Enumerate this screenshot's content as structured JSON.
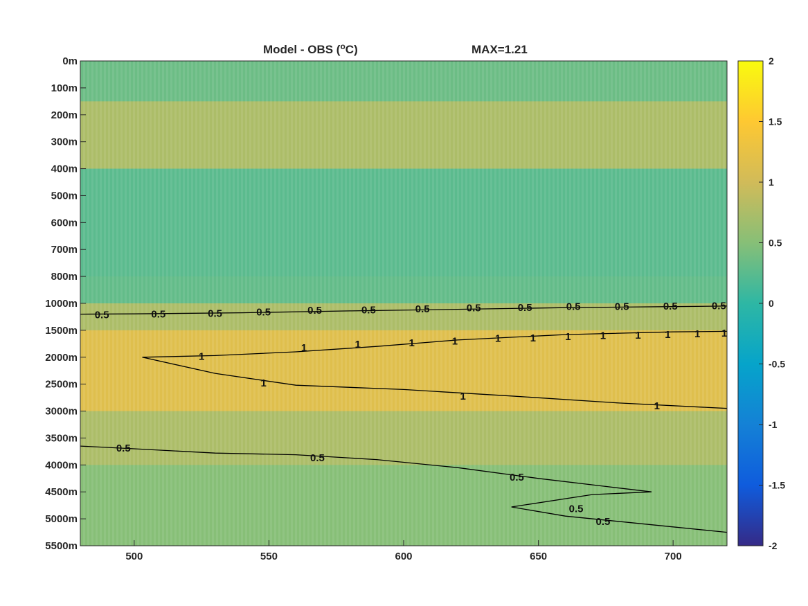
{
  "chart_data": {
    "type": "heatmap",
    "title_left": "Model - OBS (",
    "title_unit_sup": "o",
    "title_unit": "C)",
    "title_right": "MAX=1.21",
    "xlim": [
      480,
      720
    ],
    "x_ticks": [
      "500",
      "550",
      "600",
      "650",
      "700"
    ],
    "x_tick_values": [
      500,
      550,
      600,
      650,
      700
    ],
    "y_tick_labels": [
      "0m",
      "100m",
      "200m",
      "300m",
      "400m",
      "500m",
      "600m",
      "700m",
      "800m",
      "1000m",
      "1500m",
      "2000m",
      "2500m",
      "3000m",
      "3500m",
      "4000m",
      "4500m",
      "5000m",
      "5500m"
    ],
    "y_tick_depths": [
      0,
      100,
      200,
      300,
      400,
      500,
      600,
      700,
      800,
      1000,
      1500,
      2000,
      2500,
      3000,
      3500,
      4000,
      4500,
      5000,
      5500
    ],
    "colorbar": {
      "range": [
        -2,
        2
      ],
      "ticks": [
        "2",
        "1.5",
        "1",
        "0.5",
        "0",
        "-0.5",
        "-1",
        "-1.5",
        "-2"
      ],
      "tick_values": [
        2,
        1.5,
        1,
        0.5,
        0,
        -0.5,
        -1,
        -1.5,
        -2
      ],
      "colormap": "parula"
    },
    "field_bands": [
      {
        "depth_from": 0,
        "depth_to": 150,
        "value": 0.35
      },
      {
        "depth_from": 150,
        "depth_to": 400,
        "value": 0.75
      },
      {
        "depth_from": 400,
        "depth_to": 800,
        "value": 0.25
      },
      {
        "depth_from": 800,
        "depth_to": 1000,
        "value": 0.3
      },
      {
        "depth_from": 1000,
        "depth_to": 1500,
        "value": 0.75
      },
      {
        "depth_from": 1500,
        "depth_to": 3000,
        "value": 1.15
      },
      {
        "depth_from": 3000,
        "depth_to": 4000,
        "value": 0.75
      },
      {
        "depth_from": 4000,
        "depth_to": 5500,
        "value": 0.5
      }
    ],
    "contours": [
      {
        "level": 0.5,
        "points": [
          [
            480,
            1200
          ],
          [
            500,
            1195
          ],
          [
            540,
            1175
          ],
          [
            580,
            1140
          ],
          [
            620,
            1110
          ],
          [
            660,
            1080
          ],
          [
            700,
            1060
          ],
          [
            720,
            1050
          ]
        ]
      },
      {
        "level": 1,
        "points": [
          [
            720,
            1520
          ],
          [
            700,
            1530
          ],
          [
            660,
            1580
          ],
          [
            620,
            1680
          ],
          [
            590,
            1800
          ],
          [
            560,
            1900
          ],
          [
            530,
            1970
          ],
          [
            503,
            2000
          ],
          [
            530,
            2300
          ],
          [
            560,
            2520
          ],
          [
            600,
            2600
          ],
          [
            640,
            2720
          ],
          [
            680,
            2850
          ],
          [
            720,
            2950
          ]
        ]
      },
      {
        "level": 0.5,
        "points": [
          [
            480,
            3650
          ],
          [
            500,
            3700
          ],
          [
            530,
            3780
          ],
          [
            560,
            3810
          ],
          [
            590,
            3900
          ],
          [
            620,
            4050
          ],
          [
            650,
            4250
          ],
          [
            675,
            4400
          ],
          [
            692,
            4500
          ],
          [
            670,
            4550
          ],
          [
            640,
            4780
          ],
          [
            660,
            4950
          ],
          [
            700,
            5150
          ],
          [
            720,
            5250
          ]
        ]
      }
    ],
    "contour_labels": [
      {
        "text": "0.5",
        "x": 488,
        "depth": 1215
      },
      {
        "text": "0.5",
        "x": 509,
        "depth": 1200
      },
      {
        "text": "0.5",
        "x": 530,
        "depth": 1185
      },
      {
        "text": "0.5",
        "x": 548,
        "depth": 1160
      },
      {
        "text": "0.5",
        "x": 567,
        "depth": 1130
      },
      {
        "text": "0.5",
        "x": 587,
        "depth": 1120
      },
      {
        "text": "0.5",
        "x": 607,
        "depth": 1105
      },
      {
        "text": "0.5",
        "x": 626,
        "depth": 1085
      },
      {
        "text": "0.5",
        "x": 645,
        "depth": 1075
      },
      {
        "text": "0.5",
        "x": 663,
        "depth": 1060
      },
      {
        "text": "0.5",
        "x": 681,
        "depth": 1055
      },
      {
        "text": "0.5",
        "x": 699,
        "depth": 1050
      },
      {
        "text": "0.5",
        "x": 717,
        "depth": 1045
      },
      {
        "text": "1",
        "x": 525,
        "depth": 1985
      },
      {
        "text": "1",
        "x": 563,
        "depth": 1820
      },
      {
        "text": "1",
        "x": 583,
        "depth": 1760
      },
      {
        "text": "1",
        "x": 603,
        "depth": 1730
      },
      {
        "text": "1",
        "x": 619,
        "depth": 1700
      },
      {
        "text": "1",
        "x": 635,
        "depth": 1650
      },
      {
        "text": "1",
        "x": 648,
        "depth": 1640
      },
      {
        "text": "1",
        "x": 661,
        "depth": 1620
      },
      {
        "text": "1",
        "x": 674,
        "depth": 1600
      },
      {
        "text": "1",
        "x": 687,
        "depth": 1590
      },
      {
        "text": "1",
        "x": 698,
        "depth": 1580
      },
      {
        "text": "1",
        "x": 709,
        "depth": 1565
      },
      {
        "text": "1",
        "x": 719,
        "depth": 1550
      },
      {
        "text": "1",
        "x": 548,
        "depth": 2480
      },
      {
        "text": "1",
        "x": 622,
        "depth": 2720
      },
      {
        "text": "1",
        "x": 694,
        "depth": 2900
      },
      {
        "text": "0.5",
        "x": 496,
        "depth": 3690
      },
      {
        "text": "0.5",
        "x": 568,
        "depth": 3870
      },
      {
        "text": "0.5",
        "x": 642,
        "depth": 4230
      },
      {
        "text": "0.5",
        "x": 664,
        "depth": 4810
      },
      {
        "text": "0.5",
        "x": 674,
        "depth": 5050
      }
    ]
  }
}
